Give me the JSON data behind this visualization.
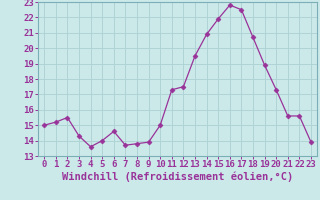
{
  "x": [
    0,
    1,
    2,
    3,
    4,
    5,
    6,
    7,
    8,
    9,
    10,
    11,
    12,
    13,
    14,
    15,
    16,
    17,
    18,
    19,
    20,
    21,
    22,
    23
  ],
  "y": [
    15.0,
    15.2,
    15.5,
    14.3,
    13.6,
    14.0,
    14.6,
    13.7,
    13.8,
    13.9,
    15.0,
    17.3,
    17.5,
    19.5,
    20.9,
    21.9,
    22.8,
    22.5,
    20.7,
    18.9,
    17.3,
    15.6,
    15.6,
    13.9
  ],
  "xlabel": "Windchill (Refroidissement éolien,°C)",
  "ylim": [
    13,
    23
  ],
  "yticks": [
    13,
    14,
    15,
    16,
    17,
    18,
    19,
    20,
    21,
    22,
    23
  ],
  "xticks": [
    0,
    1,
    2,
    3,
    4,
    5,
    6,
    7,
    8,
    9,
    10,
    11,
    12,
    13,
    14,
    15,
    16,
    17,
    18,
    19,
    20,
    21,
    22,
    23
  ],
  "line_color": "#993399",
  "marker": "D",
  "marker_size": 2.5,
  "bg_color": "#cce9ea",
  "grid_color": "#b0d4d5",
  "tick_color": "#993399",
  "tick_label_fontsize": 6.5,
  "xlabel_fontsize": 7.5
}
